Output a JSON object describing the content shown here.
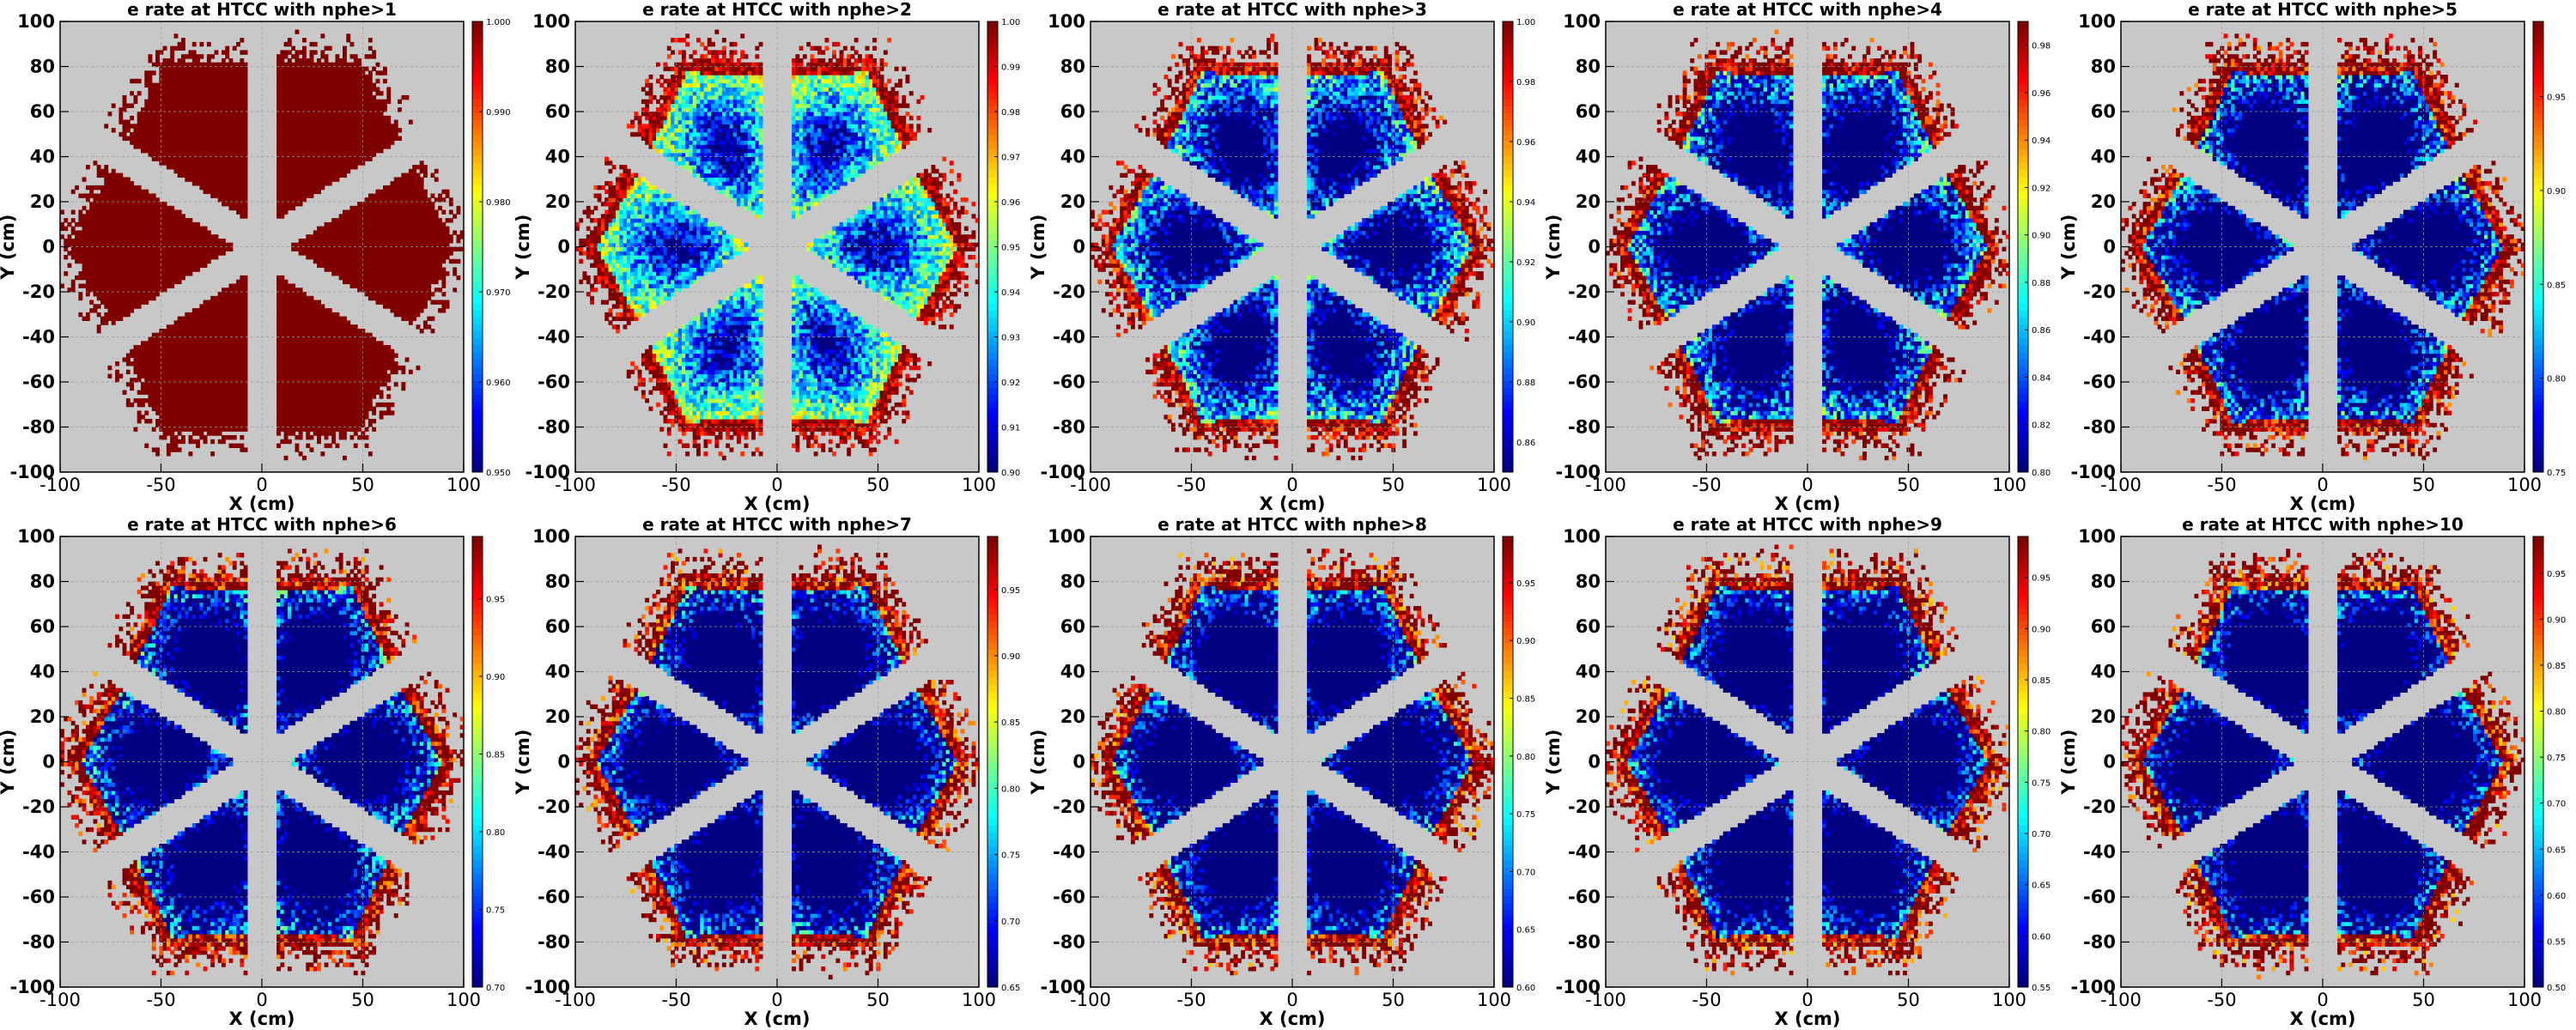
{
  "chart_data": [
    {
      "type": "heatmap",
      "title": "e rate at HTCC with nphe>1",
      "xlabel": "X (cm)",
      "ylabel": "Y (cm)",
      "xlim": [
        -100,
        100
      ],
      "ylim": [
        -100,
        100
      ],
      "xticks": [
        "-100",
        "-50",
        "0",
        "50",
        "100"
      ],
      "yticks": [
        "-100",
        "-80",
        "-60",
        "-40",
        "-20",
        "0",
        "20",
        "40",
        "60",
        "80",
        "100"
      ],
      "zlim": [
        0.95,
        1.0
      ],
      "zticks": [
        "0.950",
        "0.960",
        "0.970",
        "0.980",
        "0.990",
        "1.000"
      ],
      "grid": true,
      "colormap": "jet",
      "background": "#c8c8c8"
    },
    {
      "type": "heatmap",
      "title": "e rate at HTCC with nphe>2",
      "xlabel": "X (cm)",
      "ylabel": "Y (cm)",
      "xlim": [
        -100,
        100
      ],
      "ylim": [
        -100,
        100
      ],
      "xticks": [
        "-100",
        "-50",
        "0",
        "50",
        "100"
      ],
      "yticks": [
        "-100",
        "-80",
        "-60",
        "-40",
        "-20",
        "0",
        "20",
        "40",
        "60",
        "80",
        "100"
      ],
      "zlim": [
        0.9,
        1.0
      ],
      "zticks": [
        "0.90",
        "0.91",
        "0.92",
        "0.93",
        "0.94",
        "0.95",
        "0.96",
        "0.97",
        "0.98",
        "0.99",
        "1.00"
      ],
      "grid": true,
      "colormap": "jet",
      "background": "#c8c8c8"
    },
    {
      "type": "heatmap",
      "title": "e rate at HTCC with nphe>3",
      "xlabel": "X (cm)",
      "ylabel": "Y (cm)",
      "xlim": [
        -100,
        100
      ],
      "ylim": [
        -100,
        100
      ],
      "xticks": [
        "-100",
        "-50",
        "0",
        "50",
        "100"
      ],
      "yticks": [
        "-100",
        "-80",
        "-60",
        "-40",
        "-20",
        "0",
        "20",
        "40",
        "60",
        "80",
        "100"
      ],
      "zlim": [
        0.85,
        1.0
      ],
      "zticks": [
        "0.86",
        "0.88",
        "0.90",
        "0.92",
        "0.94",
        "0.96",
        "0.98",
        "1.00"
      ],
      "grid": true,
      "colormap": "jet",
      "background": "#c8c8c8"
    },
    {
      "type": "heatmap",
      "title": "e rate at HTCC with nphe>4",
      "xlabel": "X (cm)",
      "ylabel": "Y (cm)",
      "xlim": [
        -100,
        100
      ],
      "ylim": [
        -100,
        100
      ],
      "xticks": [
        "-100",
        "-50",
        "0",
        "50",
        "100"
      ],
      "yticks": [
        "-100",
        "-80",
        "-60",
        "-40",
        "-20",
        "0",
        "20",
        "40",
        "60",
        "80",
        "100"
      ],
      "zlim": [
        0.8,
        0.99
      ],
      "zticks": [
        "0.80",
        "0.82",
        "0.84",
        "0.86",
        "0.88",
        "0.90",
        "0.92",
        "0.94",
        "0.96",
        "0.98"
      ],
      "grid": true,
      "colormap": "jet",
      "background": "#c8c8c8"
    },
    {
      "type": "heatmap",
      "title": "e rate at HTCC with nphe>5",
      "xlabel": "X (cm)",
      "ylabel": "Y (cm)",
      "xlim": [
        -100,
        100
      ],
      "ylim": [
        -100,
        100
      ],
      "xticks": [
        "-100",
        "-50",
        "0",
        "50",
        "100"
      ],
      "yticks": [
        "-100",
        "-80",
        "-60",
        "-40",
        "-20",
        "0",
        "20",
        "40",
        "60",
        "80",
        "100"
      ],
      "zlim": [
        0.75,
        0.99
      ],
      "zticks": [
        "0.75",
        "0.80",
        "0.85",
        "0.90",
        "0.95"
      ],
      "grid": true,
      "colormap": "jet",
      "background": "#c8c8c8"
    },
    {
      "type": "heatmap",
      "title": "e rate at HTCC with nphe>6",
      "xlabel": "X (cm)",
      "ylabel": "Y (cm)",
      "xlim": [
        -100,
        100
      ],
      "ylim": [
        -100,
        100
      ],
      "xticks": [
        "-100",
        "-50",
        "0",
        "50",
        "100"
      ],
      "yticks": [
        "-100",
        "-80",
        "-60",
        "-40",
        "-20",
        "0",
        "20",
        "40",
        "60",
        "80",
        "100"
      ],
      "zlim": [
        0.7,
        0.99
      ],
      "zticks": [
        "0.70",
        "0.75",
        "0.80",
        "0.85",
        "0.90",
        "0.95"
      ],
      "grid": true,
      "colormap": "jet",
      "background": "#c8c8c8"
    },
    {
      "type": "heatmap",
      "title": "e rate at HTCC with nphe>7",
      "xlabel": "X (cm)",
      "ylabel": "Y (cm)",
      "xlim": [
        -100,
        100
      ],
      "ylim": [
        -100,
        100
      ],
      "xticks": [
        "-100",
        "-50",
        "0",
        "50",
        "100"
      ],
      "yticks": [
        "-100",
        "-80",
        "-60",
        "-40",
        "-20",
        "0",
        "20",
        "40",
        "60",
        "80",
        "100"
      ],
      "zlim": [
        0.65,
        0.99
      ],
      "zticks": [
        "0.65",
        "0.70",
        "0.75",
        "0.80",
        "0.85",
        "0.90",
        "0.95"
      ],
      "grid": true,
      "colormap": "jet",
      "background": "#c8c8c8"
    },
    {
      "type": "heatmap",
      "title": "e rate at HTCC with nphe>8",
      "xlabel": "X (cm)",
      "ylabel": "Y (cm)",
      "xlim": [
        -100,
        100
      ],
      "ylim": [
        -100,
        100
      ],
      "xticks": [
        "-100",
        "-50",
        "0",
        "50",
        "100"
      ],
      "yticks": [
        "-100",
        "-80",
        "-60",
        "-40",
        "-20",
        "0",
        "20",
        "40",
        "60",
        "80",
        "100"
      ],
      "zlim": [
        0.6,
        0.99
      ],
      "zticks": [
        "0.60",
        "0.65",
        "0.70",
        "0.75",
        "0.80",
        "0.85",
        "0.90",
        "0.95"
      ],
      "grid": true,
      "colormap": "jet",
      "background": "#c8c8c8"
    },
    {
      "type": "heatmap",
      "title": "e rate at HTCC with nphe>9",
      "xlabel": "X (cm)",
      "ylabel": "Y (cm)",
      "xlim": [
        -100,
        100
      ],
      "ylim": [
        -100,
        100
      ],
      "xticks": [
        "-100",
        "-50",
        "0",
        "50",
        "100"
      ],
      "yticks": [
        "-100",
        "-80",
        "-60",
        "-40",
        "-20",
        "0",
        "20",
        "40",
        "60",
        "80",
        "100"
      ],
      "zlim": [
        0.55,
        0.99
      ],
      "zticks": [
        "0.55",
        "0.60",
        "0.65",
        "0.70",
        "0.75",
        "0.80",
        "0.85",
        "0.90",
        "0.95"
      ],
      "grid": true,
      "colormap": "jet",
      "background": "#c8c8c8"
    },
    {
      "type": "heatmap",
      "title": "e rate at HTCC with nphe>10",
      "xlabel": "X (cm)",
      "ylabel": "Y (cm)",
      "xlim": [
        -100,
        100
      ],
      "ylim": [
        -100,
        100
      ],
      "xticks": [
        "-100",
        "-50",
        "0",
        "50",
        "100"
      ],
      "yticks": [
        "-100",
        "-80",
        "-60",
        "-40",
        "-20",
        "0",
        "20",
        "40",
        "60",
        "80",
        "100"
      ],
      "zlim": [
        0.5,
        0.99
      ],
      "zticks": [
        "0.50",
        "0.55",
        "0.60",
        "0.65",
        "0.70",
        "0.75",
        "0.80",
        "0.85",
        "0.90",
        "0.95"
      ],
      "grid": true,
      "colormap": "jet",
      "background": "#c8c8c8"
    }
  ]
}
